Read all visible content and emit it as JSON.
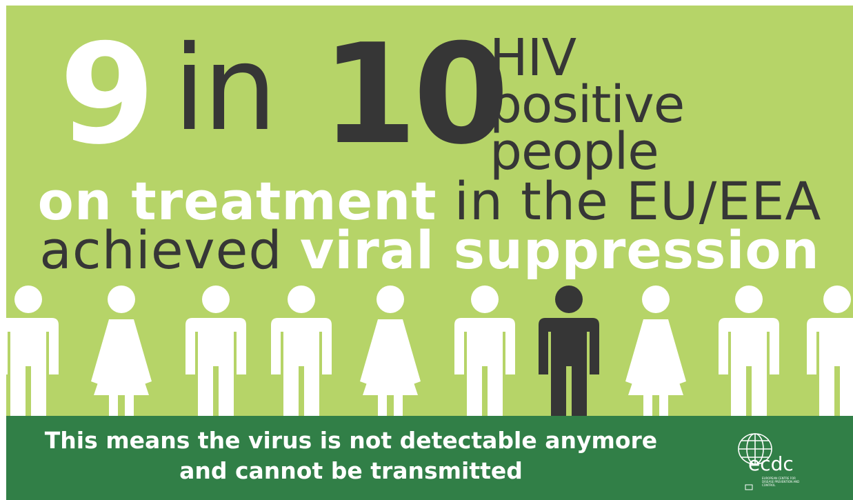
{
  "headline": {
    "num1": "9",
    "in_word": "in",
    "num2": "10",
    "hiv_line1": "HIV positive",
    "hiv_line2": "people"
  },
  "subline": {
    "line1_bold": "on treatment",
    "line1_rest": "in the EU/EEA",
    "line2_plain": "achieved",
    "line2_bold": "viral suppression"
  },
  "pictogram": {
    "figures": [
      "man",
      "woman",
      "man",
      "man",
      "woman",
      "man",
      "man",
      "woman",
      "man",
      "man"
    ],
    "highlight_index": 6,
    "colors": {
      "figure": "#ffffff",
      "highlight": "#363636"
    }
  },
  "footer": {
    "line1": "This means the virus is not detectable anymore",
    "line2": "and cannot be transmitted",
    "logo_text": "ecdc",
    "logo_subtext": "EUROPEAN CENTRE FOR DISEASE PREVENTION AND CONTROL"
  },
  "colors": {
    "background": "#b6d468",
    "footer": "#317f47",
    "dark_text": "#363636",
    "light_text": "#ffffff"
  }
}
